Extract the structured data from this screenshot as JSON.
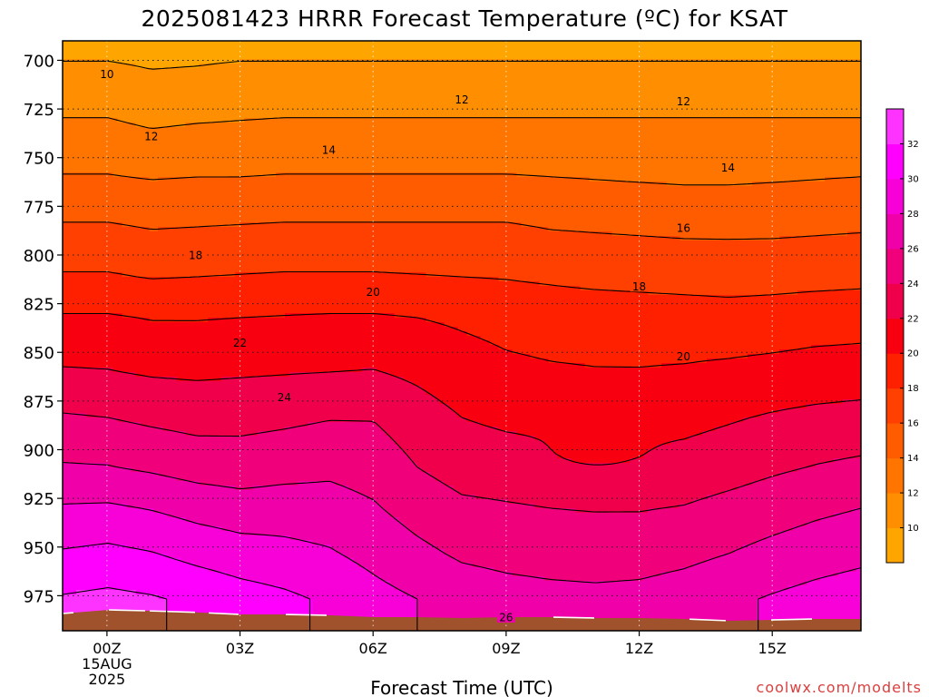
{
  "chart_data": {
    "type": "heatmap",
    "title": "2025081423 HRRR Forecast Temperature (ºC) for KSAT",
    "xlabel": "Forecast Time (UTC)",
    "ylabel": "",
    "x_ticks": [
      "00Z",
      "03Z",
      "06Z",
      "09Z",
      "12Z",
      "15Z"
    ],
    "x_tick_hours": [
      0,
      3,
      6,
      9,
      12,
      15
    ],
    "x_date_lines": [
      "15AUG",
      "2025"
    ],
    "xlim_hours": [
      -1,
      17
    ],
    "y_ticks": [
      700,
      725,
      750,
      775,
      800,
      825,
      850,
      875,
      900,
      925,
      950,
      975
    ],
    "ylim_hpa": [
      690,
      993
    ],
    "grid": true,
    "colorbar": {
      "placement": "right",
      "ticks": [
        10,
        12,
        14,
        16,
        18,
        20,
        22,
        24,
        26,
        28,
        30,
        32
      ],
      "range": [
        8,
        34
      ],
      "colors": [
        "#ffa500",
        "#ff8f00",
        "#ff7500",
        "#ff5c00",
        "#ff4000",
        "#ff2000",
        "#f80010",
        "#f0004a",
        "#f0007a",
        "#f000a8",
        "#f800d8",
        "#ff00ff",
        "#ff33ff"
      ]
    },
    "surface_color": "#a0522d",
    "contour_levels": [
      10,
      12,
      14,
      16,
      18,
      20,
      22,
      24,
      26,
      28,
      30,
      32
    ],
    "contour_labels": [
      {
        "text": "10",
        "hour": 0.0,
        "hpa": 707
      },
      {
        "text": "12",
        "hour": 1.0,
        "hpa": 739
      },
      {
        "text": "12",
        "hour": 8.0,
        "hpa": 720
      },
      {
        "text": "12",
        "hour": 13.0,
        "hpa": 721
      },
      {
        "text": "14",
        "hour": 5.0,
        "hpa": 746
      },
      {
        "text": "14",
        "hour": 14.0,
        "hpa": 755
      },
      {
        "text": "16",
        "hour": 13.0,
        "hpa": 786
      },
      {
        "text": "18",
        "hour": 2.0,
        "hpa": 800
      },
      {
        "text": "18",
        "hour": 12.0,
        "hpa": 816
      },
      {
        "text": "20",
        "hour": 6.0,
        "hpa": 819
      },
      {
        "text": "20",
        "hour": 13.0,
        "hpa": 852
      },
      {
        "text": "22",
        "hour": 3.0,
        "hpa": 845
      },
      {
        "text": "24",
        "hour": 4.0,
        "hpa": 873
      },
      {
        "text": "26",
        "hour": 9.0,
        "hpa": 986
      }
    ]
  },
  "watermark": "coolwx.com/modelts"
}
